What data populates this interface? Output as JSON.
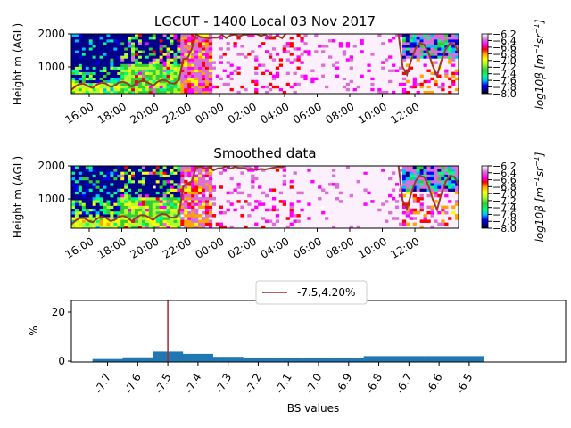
{
  "chart_data": [
    {
      "type": "heatmap",
      "title": "LGCUT - 1400 Local 03 Nov 2017",
      "ylabel": "Height m (AGL)",
      "yticks": [
        "1000",
        "2000"
      ],
      "ylim": [
        100,
        2000
      ],
      "xticks": [
        "16:00",
        "18:00",
        "20:00",
        "22:00",
        "00:00",
        "02:00",
        "04:00",
        "06:00",
        "08:00",
        "10:00",
        "12:00"
      ],
      "colorbar": {
        "label": "log10β [m⁻¹sr⁻¹]",
        "label_main": "log10β [m",
        "label_exp1": "−1",
        "label_mid": "sr",
        "label_exp2": "−1",
        "label_end": "]",
        "range": [
          -8.0,
          -6.2
        ],
        "ticks": [
          "−8.0",
          "−7.8",
          "−7.6",
          "−7.4",
          "−7.2",
          "−7.0",
          "−6.8",
          "−6.6",
          "−6.4",
          "−6.2"
        ]
      },
      "line_color": "#9b3a2c"
    },
    {
      "type": "heatmap",
      "title": "Smoothed data",
      "ylabel": "Height m (AGL)",
      "yticks": [
        "1000",
        "2000"
      ],
      "ylim": [
        100,
        2000
      ],
      "xticks": [
        "16:00",
        "18:00",
        "20:00",
        "22:00",
        "00:00",
        "02:00",
        "04:00",
        "06:00",
        "08:00",
        "10:00",
        "12:00"
      ],
      "colorbar": {
        "label": "log10β [m⁻¹sr⁻¹]",
        "label_main": "log10β [m",
        "label_exp1": "−1",
        "label_mid": "sr",
        "label_exp2": "−1",
        "label_end": "]",
        "range": [
          -8.0,
          -6.2
        ],
        "ticks": [
          "−8.0",
          "−7.8",
          "−7.6",
          "−7.4",
          "−7.2",
          "−7.0",
          "−6.8",
          "−6.6",
          "−6.4",
          "−6.2"
        ]
      },
      "line_color": "#9b3a2c"
    },
    {
      "type": "bar",
      "xlabel": "BS values",
      "ylabel": "%",
      "yticks": [
        "0",
        "20"
      ],
      "ylim": [
        0,
        25
      ],
      "xlim": [
        -7.82,
        -6.18
      ],
      "categories": [
        "-7.7",
        "-7.6",
        "-7.5",
        "-7.4",
        "-7.3",
        "-7.2",
        "-7.1",
        "-7.0",
        "-6.9",
        "-6.8",
        "-6.7",
        "-6.6",
        "-6.5"
      ],
      "values": [
        1.2,
        1.9,
        4.2,
        3.3,
        2.1,
        1.5,
        1.5,
        1.8,
        1.8,
        2.4,
        2.4,
        2.4,
        2.4
      ],
      "bar_color": "#1f77b4",
      "threshold": {
        "x": -7.5,
        "color": "#a52a2a"
      },
      "legend": {
        "entry": "-7.5,4.20%",
        "position": "top-center"
      }
    }
  ]
}
